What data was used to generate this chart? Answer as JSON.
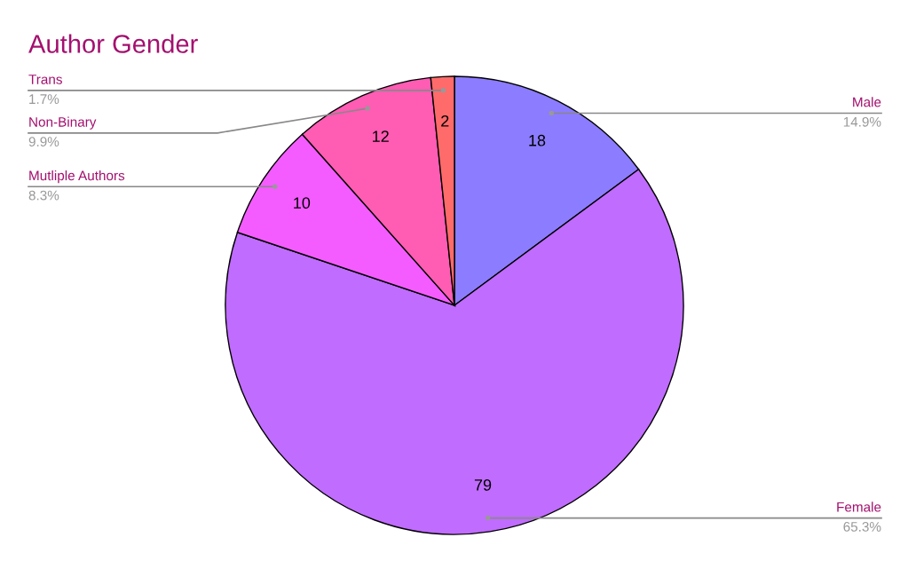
{
  "chart_data": {
    "type": "pie",
    "title": "Author Gender",
    "categories": [
      "Male",
      "Female",
      "Mutliple Authors",
      "Non-Binary",
      "Trans"
    ],
    "values": [
      18,
      79,
      10,
      12,
      2
    ],
    "colors": [
      "#8c7cff",
      "#c06cff",
      "#f45cff",
      "#ff5cb4",
      "#ff6b6b"
    ],
    "data_labels": true,
    "annotations": [
      "14.9%",
      "65.3%",
      "8.3%",
      "9.9%",
      "1.7%"
    ]
  }
}
